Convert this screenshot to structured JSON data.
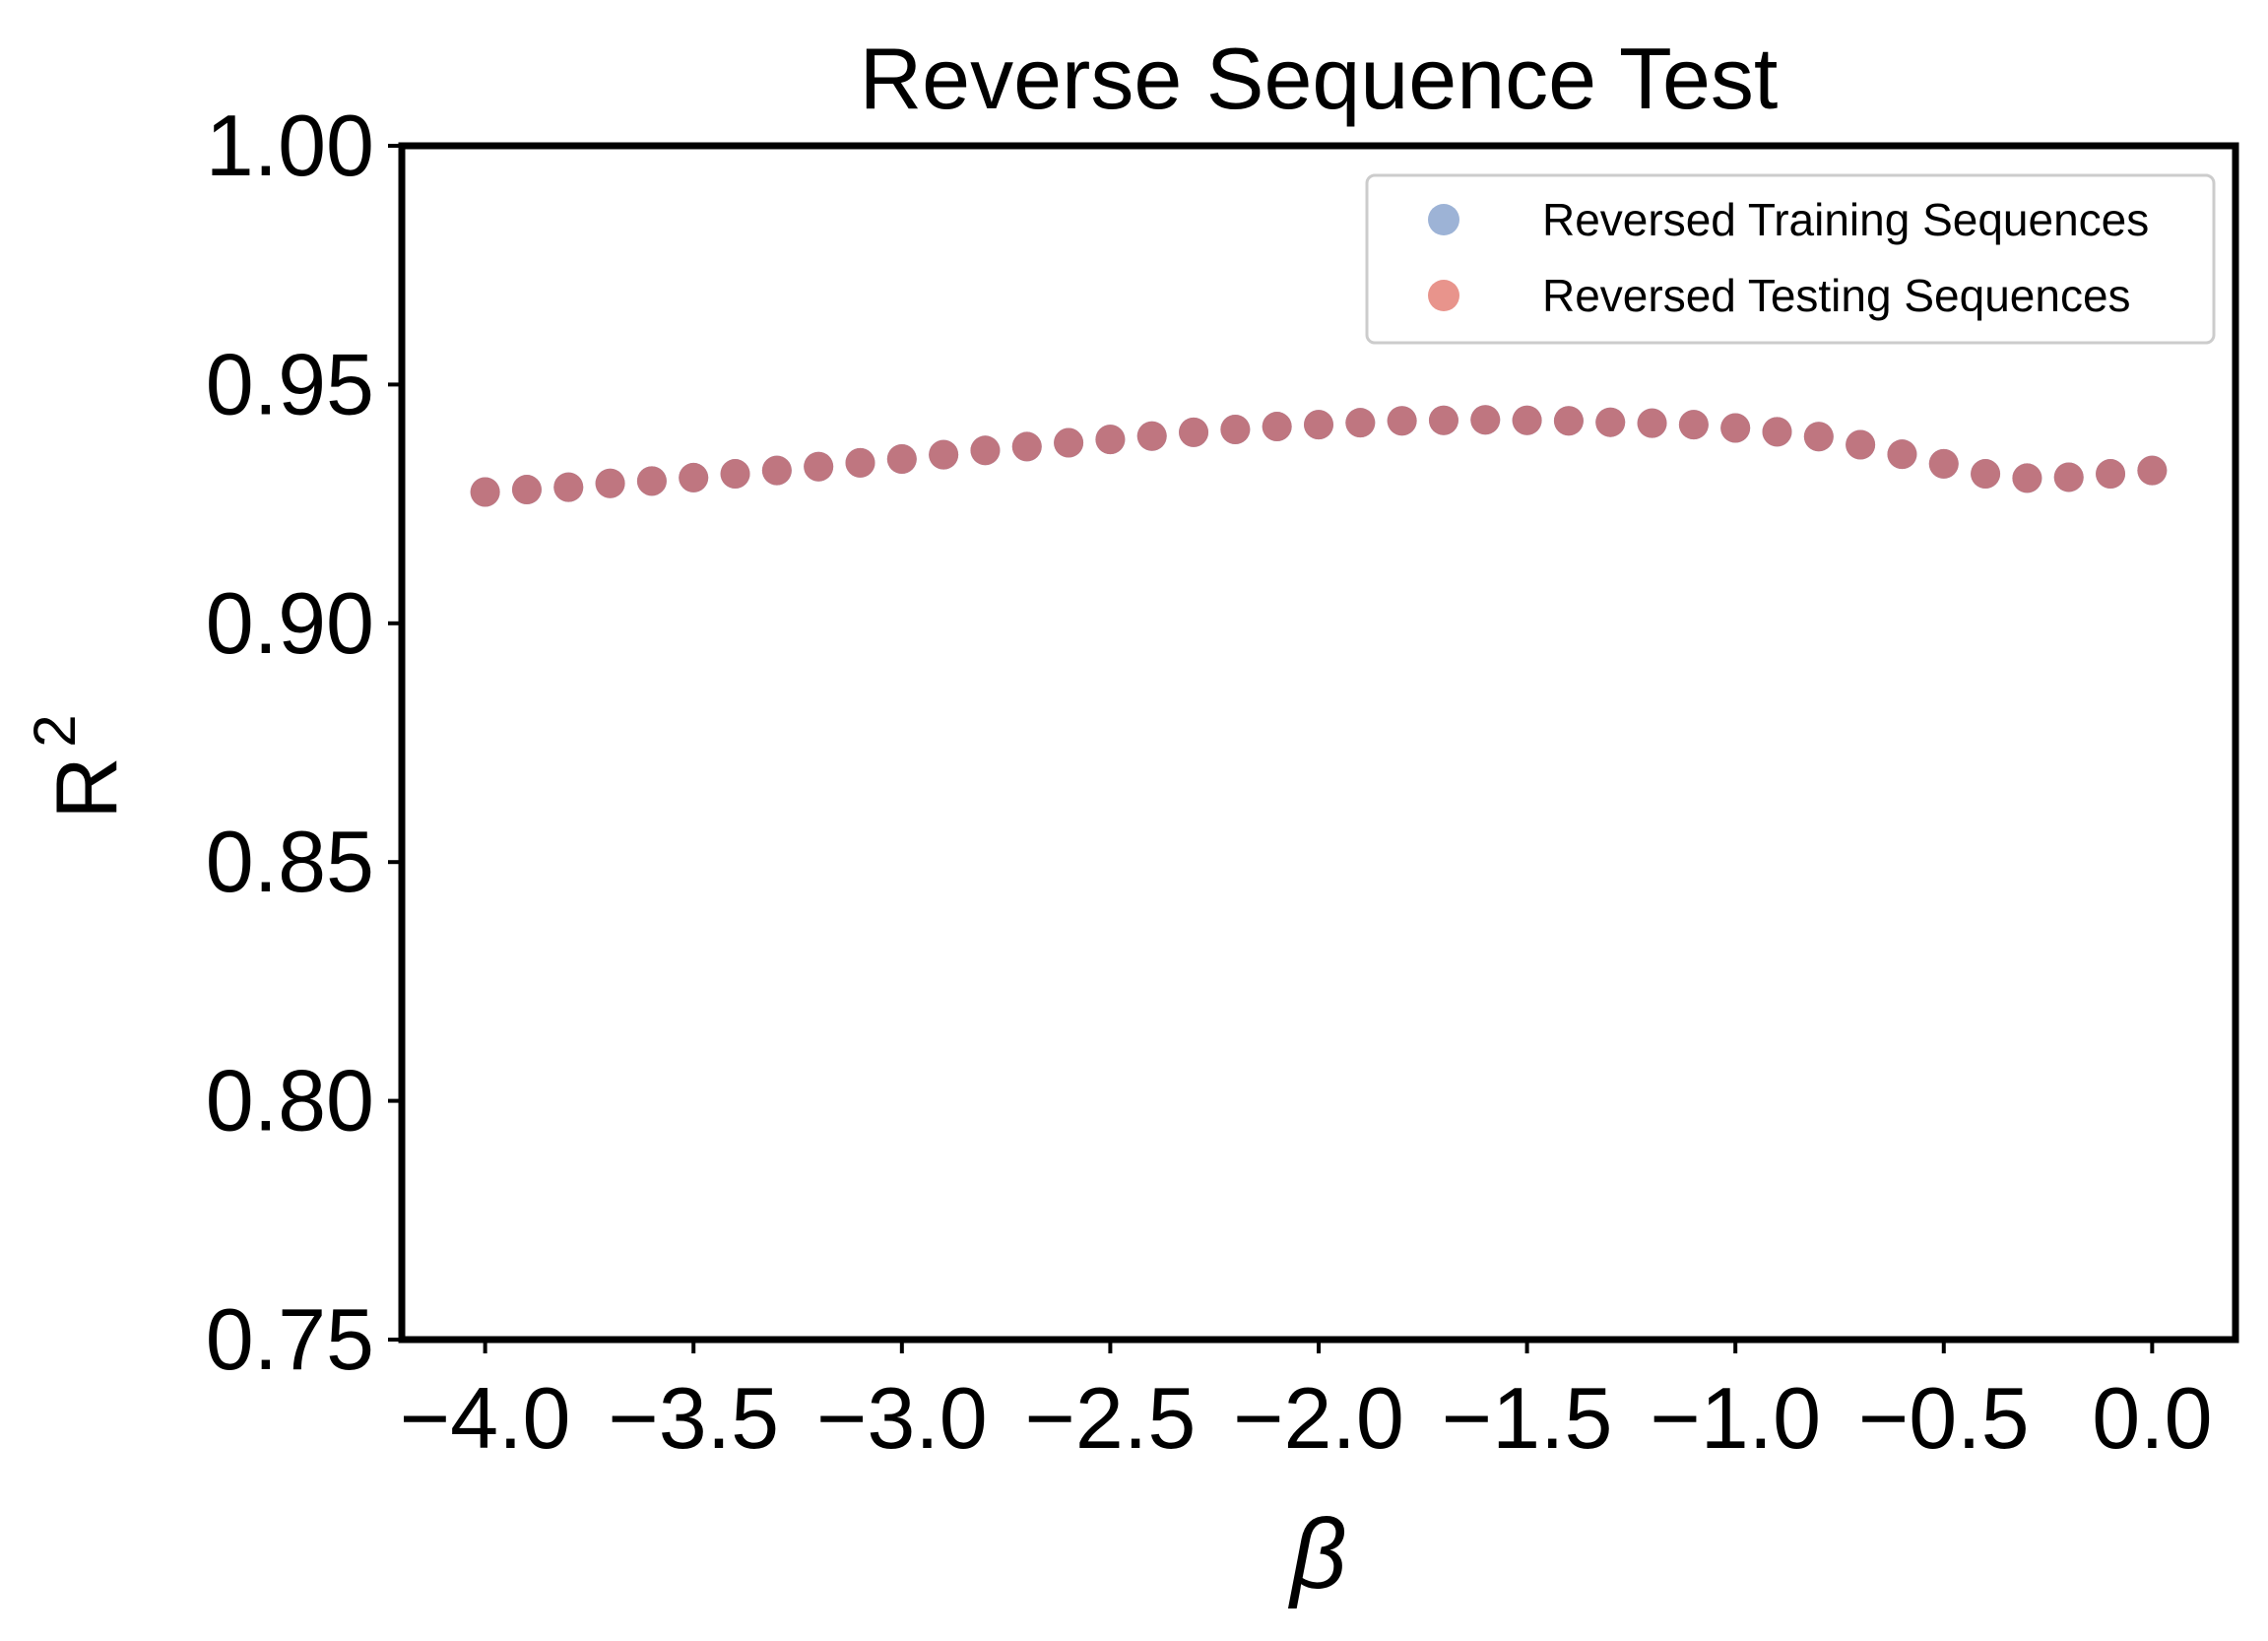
{
  "chart_data": {
    "type": "scatter",
    "title": "Reverse Sequence Test",
    "xlabel": "β",
    "ylabel": "R",
    "ylabel_superscript": "2",
    "xlim": [
      -4.2,
      0.2
    ],
    "ylim": [
      0.75,
      1.0
    ],
    "x_ticks": [
      -4.0,
      -3.5,
      -3.0,
      -2.5,
      -2.0,
      -1.5,
      -1.0,
      -0.5,
      0.0
    ],
    "x_tick_labels": [
      "−4.0",
      "−3.5",
      "−3.0",
      "−2.5",
      "−2.0",
      "−1.5",
      "−1.0",
      "−0.5",
      "0.0"
    ],
    "y_ticks": [
      0.75,
      0.8,
      0.85,
      0.9,
      0.95,
      1.0
    ],
    "y_tick_labels": [
      "0.75",
      "0.80",
      "0.85",
      "0.90",
      "0.95",
      "1.00"
    ],
    "grid": false,
    "legend_position": "top-right",
    "x": [
      -4.0,
      -3.9,
      -3.8,
      -3.7,
      -3.6,
      -3.5,
      -3.4,
      -3.3,
      -3.2,
      -3.1,
      -3.0,
      -2.9,
      -2.8,
      -2.7,
      -2.6,
      -2.5,
      -2.4,
      -2.3,
      -2.2,
      -2.1,
      -2.0,
      -1.9,
      -1.8,
      -1.7,
      -1.6,
      -1.5,
      -1.4,
      -1.3,
      -1.2,
      -1.1,
      -1.0,
      -0.9,
      -0.8,
      -0.7,
      -0.6,
      -0.5,
      -0.4,
      -0.3,
      -0.2,
      -0.1,
      0.0
    ],
    "series": [
      {
        "name": "Reversed Training Sequences",
        "color": "#9db3d6",
        "values": [
          0.9275,
          0.928,
          0.9285,
          0.9293,
          0.9298,
          0.9305,
          0.9313,
          0.932,
          0.9328,
          0.9336,
          0.9344,
          0.9353,
          0.9362,
          0.937,
          0.9378,
          0.9385,
          0.9392,
          0.94,
          0.9406,
          0.9412,
          0.9416,
          0.942,
          0.9424,
          0.9425,
          0.9426,
          0.9425,
          0.9424,
          0.9421,
          0.9419,
          0.9416,
          0.9409,
          0.9401,
          0.9391,
          0.9374,
          0.9354,
          0.9334,
          0.9313,
          0.9304,
          0.9306,
          0.9313,
          0.932
        ]
      },
      {
        "name": "Reversed Testing Sequences",
        "color": "#e8948c",
        "values": [
          0.9275,
          0.928,
          0.9285,
          0.9293,
          0.9298,
          0.9305,
          0.9313,
          0.932,
          0.9328,
          0.9336,
          0.9344,
          0.9353,
          0.9362,
          0.937,
          0.9378,
          0.9385,
          0.9392,
          0.94,
          0.9406,
          0.9412,
          0.9416,
          0.942,
          0.9424,
          0.9425,
          0.9426,
          0.9425,
          0.9424,
          0.9421,
          0.9419,
          0.9416,
          0.9409,
          0.9401,
          0.9391,
          0.9374,
          0.9354,
          0.9334,
          0.9313,
          0.9304,
          0.9306,
          0.9313,
          0.932
        ]
      }
    ],
    "overlap_color": "#bf7680"
  }
}
